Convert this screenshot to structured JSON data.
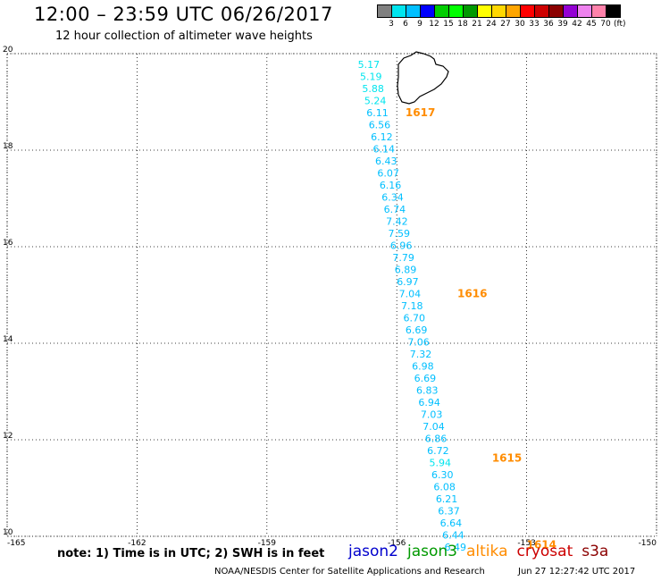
{
  "header": {
    "title": "12:00 – 23:59 UTC 06/26/2017",
    "subtitle": "12 hour collection of altimeter wave heights"
  },
  "colorbar": {
    "colors": [
      "#808080",
      "#00e5ee",
      "#00bfff",
      "#0000ff",
      "#00cd00",
      "#00ff00",
      "#009900",
      "#ffff00",
      "#ffd700",
      "#ffa500",
      "#ff0000",
      "#cd0000",
      "#8b0000",
      "#9400d3",
      "#ee82ee",
      "#ff82ab",
      "#000000"
    ],
    "labels": [
      "3",
      "6",
      "9",
      "12",
      "15",
      "18",
      "21",
      "24",
      "27",
      "30",
      "33",
      "36",
      "39",
      "42",
      "45",
      "70"
    ],
    "unit": "(ft)"
  },
  "map": {
    "lon_range": [
      -165,
      -150
    ],
    "lat_range": [
      10,
      20
    ],
    "lon_ticks": [
      "-165",
      "-162",
      "-159",
      "-156",
      "-153",
      "-150"
    ],
    "lat_ticks": [
      "10",
      "12",
      "14",
      "16",
      "18",
      "20"
    ],
    "grid": true,
    "track_color": "#00bfff",
    "time_color": "#ff8c00",
    "track_points": [
      {
        "lon": -156.9,
        "lat": 19.7,
        "swh": "5.17",
        "color": "#00e5ee"
      },
      {
        "lon": -156.85,
        "lat": 19.45,
        "swh": "5.19",
        "color": "#00e5ee"
      },
      {
        "lon": -156.8,
        "lat": 19.2,
        "swh": "5.88",
        "color": "#00e5ee"
      },
      {
        "lon": -156.75,
        "lat": 18.95,
        "swh": "5.24",
        "color": "#00e5ee"
      },
      {
        "lon": -156.7,
        "lat": 18.7,
        "swh": "6.11",
        "color": "#00bfff"
      },
      {
        "lon": -156.65,
        "lat": 18.45,
        "swh": "6.56",
        "color": "#00bfff"
      },
      {
        "lon": -156.6,
        "lat": 18.2,
        "swh": "6.12",
        "color": "#00bfff"
      },
      {
        "lon": -156.55,
        "lat": 17.95,
        "swh": "6.14",
        "color": "#00bfff"
      },
      {
        "lon": -156.5,
        "lat": 17.7,
        "swh": "6.43",
        "color": "#00bfff"
      },
      {
        "lon": -156.45,
        "lat": 17.45,
        "swh": "6.07",
        "color": "#00bfff"
      },
      {
        "lon": -156.4,
        "lat": 17.2,
        "swh": "6.16",
        "color": "#00bfff"
      },
      {
        "lon": -156.35,
        "lat": 16.95,
        "swh": "6.34",
        "color": "#00bfff"
      },
      {
        "lon": -156.3,
        "lat": 16.7,
        "swh": "6.74",
        "color": "#00bfff"
      },
      {
        "lon": -156.25,
        "lat": 16.45,
        "swh": "7.42",
        "color": "#00bfff"
      },
      {
        "lon": -156.2,
        "lat": 16.2,
        "swh": "7.59",
        "color": "#00bfff"
      },
      {
        "lon": -156.15,
        "lat": 15.95,
        "swh": "6.96",
        "color": "#00bfff"
      },
      {
        "lon": -156.1,
        "lat": 15.7,
        "swh": "7.79",
        "color": "#00bfff"
      },
      {
        "lon": -156.05,
        "lat": 15.45,
        "swh": "6.89",
        "color": "#00bfff"
      },
      {
        "lon": -156.0,
        "lat": 15.2,
        "swh": "6.97",
        "color": "#00bfff"
      },
      {
        "lon": -155.95,
        "lat": 14.95,
        "swh": "7.04",
        "color": "#00bfff"
      },
      {
        "lon": -155.9,
        "lat": 14.7,
        "swh": "7.18",
        "color": "#00bfff"
      },
      {
        "lon": -155.85,
        "lat": 14.45,
        "swh": "6.70",
        "color": "#00bfff"
      },
      {
        "lon": -155.8,
        "lat": 14.2,
        "swh": "6.69",
        "color": "#00bfff"
      },
      {
        "lon": -155.75,
        "lat": 13.95,
        "swh": "7.06",
        "color": "#00bfff"
      },
      {
        "lon": -155.7,
        "lat": 13.7,
        "swh": "7.32",
        "color": "#00bfff"
      },
      {
        "lon": -155.65,
        "lat": 13.45,
        "swh": "6.98",
        "color": "#00bfff"
      },
      {
        "lon": -155.6,
        "lat": 13.2,
        "swh": "6.69",
        "color": "#00bfff"
      },
      {
        "lon": -155.55,
        "lat": 12.95,
        "swh": "6.83",
        "color": "#00bfff"
      },
      {
        "lon": -155.5,
        "lat": 12.7,
        "swh": "6.94",
        "color": "#00bfff"
      },
      {
        "lon": -155.45,
        "lat": 12.45,
        "swh": "7.03",
        "color": "#00bfff"
      },
      {
        "lon": -155.4,
        "lat": 12.2,
        "swh": "7.04",
        "color": "#00bfff"
      },
      {
        "lon": -155.35,
        "lat": 11.95,
        "swh": "6.86",
        "color": "#00bfff"
      },
      {
        "lon": -155.3,
        "lat": 11.7,
        "swh": "6.72",
        "color": "#00bfff"
      },
      {
        "lon": -155.25,
        "lat": 11.45,
        "swh": "5.94",
        "color": "#00e5ee"
      },
      {
        "lon": -155.2,
        "lat": 11.2,
        "swh": "6.30",
        "color": "#00bfff"
      },
      {
        "lon": -155.15,
        "lat": 10.95,
        "swh": "6.08",
        "color": "#00bfff"
      },
      {
        "lon": -155.1,
        "lat": 10.7,
        "swh": "6.21",
        "color": "#00bfff"
      },
      {
        "lon": -155.05,
        "lat": 10.45,
        "swh": "6.37",
        "color": "#00bfff"
      },
      {
        "lon": -155.0,
        "lat": 10.2,
        "swh": "6.64",
        "color": "#00bfff"
      },
      {
        "lon": -154.95,
        "lat": 9.95,
        "swh": "6.44",
        "color": "#00bfff"
      },
      {
        "lon": -154.9,
        "lat": 9.7,
        "swh": "6.49",
        "color": "#00bfff"
      }
    ],
    "time_labels": [
      {
        "lon": -155.8,
        "lat": 18.7,
        "text": "1617"
      },
      {
        "lon": -154.6,
        "lat": 14.95,
        "text": "1616"
      },
      {
        "lon": -153.8,
        "lat": 11.55,
        "text": "1615"
      },
      {
        "lon": -153.0,
        "lat": 9.75,
        "text": "1614"
      }
    ]
  },
  "notes": {
    "note": "note: 1) Time is in UTC; 2) SWH is in feet",
    "legend": [
      {
        "name": "jason2",
        "color": "#0000cd"
      },
      {
        "name": "jason3",
        "color": "#009900"
      },
      {
        "name": "altika",
        "color": "#ff8c00"
      },
      {
        "name": "cryosat",
        "color": "#cc0000"
      },
      {
        "name": "s3a",
        "color": "#8b0000"
      }
    ],
    "footer_left": "NOAA/NESDIS Center for Satellite Applications and Research",
    "footer_right": "Jun 27 12:27:42 UTC 2017"
  }
}
